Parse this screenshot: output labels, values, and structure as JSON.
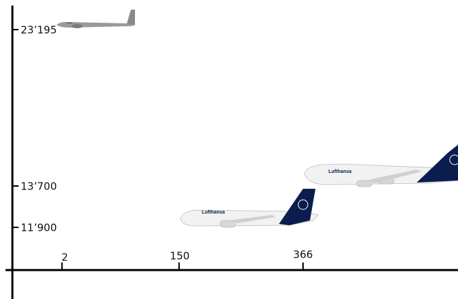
{
  "y_axis": {
    "ticks": [
      "23’195",
      "13’700",
      "11’900"
    ]
  },
  "x_axis": {
    "ticks": [
      "2",
      "150",
      "366"
    ]
  },
  "aircraft": [
    {
      "livery": "Lufthansa"
    },
    {
      "livery": "Lufthansa"
    }
  ]
}
